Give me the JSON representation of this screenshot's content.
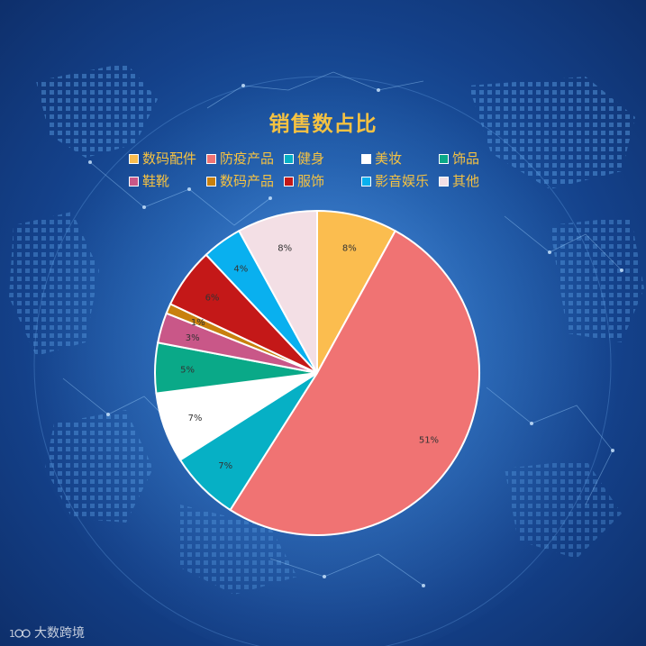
{
  "page": {
    "watermark_text": "大数跨境",
    "title_color": "#f5c242",
    "legend_text_color": "#f5c242",
    "label_color": "#333333"
  },
  "chart_data": {
    "type": "pie",
    "title": "销售数占比",
    "legend_position": "top",
    "slices": [
      {
        "name": "数码配件",
        "value": 8,
        "label": "8%",
        "color": "#fbbd4f"
      },
      {
        "name": "防疫产品",
        "value": 51,
        "label": "51%",
        "color": "#f07373"
      },
      {
        "name": "健身",
        "value": 7,
        "label": "7%",
        "color": "#06b0c5"
      },
      {
        "name": "美妆",
        "value": 7,
        "label": "7%",
        "color": "#ffffff"
      },
      {
        "name": "饰品",
        "value": 5,
        "label": "5%",
        "color": "#0aa988"
      },
      {
        "name": "鞋靴",
        "value": 3,
        "label": "3%",
        "color": "#c95788"
      },
      {
        "name": "数码产品",
        "value": 1,
        "label": "1%",
        "color": "#c8800e"
      },
      {
        "name": "服饰",
        "value": 6,
        "label": "6%",
        "color": "#c41818"
      },
      {
        "name": "影音娱乐",
        "value": 4,
        "label": "4%",
        "color": "#09b0ef"
      },
      {
        "name": "其他",
        "value": 8,
        "label": "8%",
        "color": "#f3dfe5"
      }
    ]
  }
}
